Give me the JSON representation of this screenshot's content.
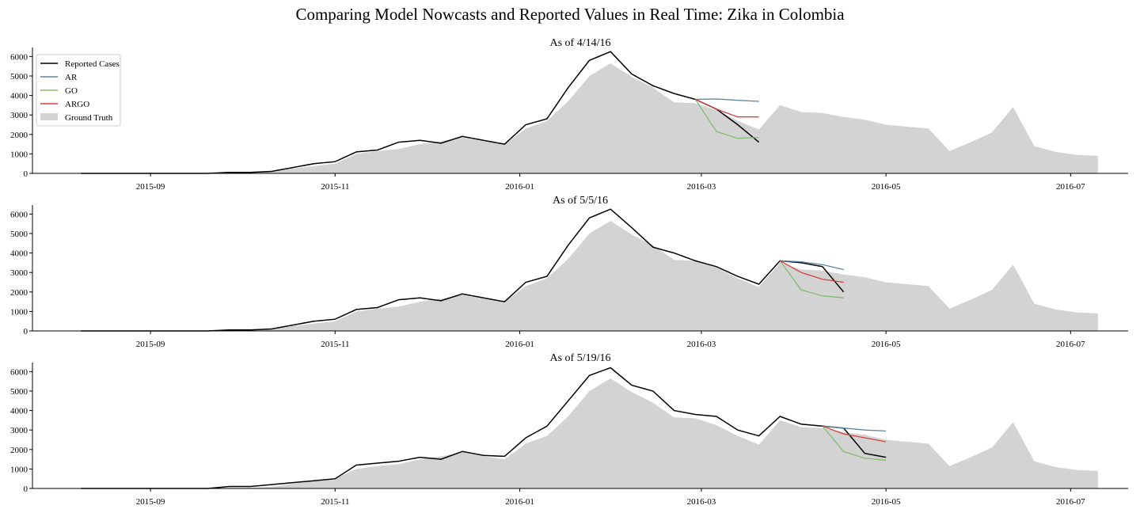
{
  "suptitle": "Comparing Model Nowcasts and Reported Values in Real Time: Zika in Colombia",
  "legend": {
    "placement": "top-left of first panel",
    "entries": [
      {
        "label": "Reported Cases",
        "key": "reported"
      },
      {
        "label": "AR",
        "key": "ar"
      },
      {
        "label": "GO",
        "key": "go"
      },
      {
        "label": "ARGO",
        "key": "argo"
      },
      {
        "label": "Ground Truth",
        "key": "truth"
      }
    ]
  },
  "colors": {
    "reported": "#000000",
    "ar": "#5b86a4",
    "go": "#83bd70",
    "argo": "#d9403f",
    "truth": "#d3d3d3"
  },
  "chart_data": {
    "type": "line",
    "shared_x_axis": {
      "type": "date",
      "ticks": [
        "2015-09-01",
        "2015-11-01",
        "2016-01-01",
        "2016-03-01",
        "2016-05-01",
        "2016-07-01"
      ],
      "tick_labels": [
        "2015-09",
        "2015-11",
        "2016-01",
        "2016-03",
        "2016-05",
        "2016-07"
      ],
      "xlim": [
        "2015-07-24",
        "2016-07-20"
      ]
    },
    "shared_y_axis": {
      "ticks": [
        0,
        1000,
        2000,
        3000,
        4000,
        5000,
        6000
      ],
      "ylim": [
        0,
        6300
      ]
    },
    "ground_truth": {
      "name": "Ground Truth",
      "type": "area",
      "x": [
        "2015-08-09",
        "2015-08-16",
        "2015-08-23",
        "2015-08-30",
        "2015-09-06",
        "2015-09-13",
        "2015-09-20",
        "2015-09-27",
        "2015-10-04",
        "2015-10-11",
        "2015-10-18",
        "2015-10-25",
        "2015-11-01",
        "2015-11-08",
        "2015-11-15",
        "2015-11-22",
        "2015-11-29",
        "2015-12-06",
        "2015-12-13",
        "2015-12-20",
        "2015-12-27",
        "2016-01-03",
        "2016-01-10",
        "2016-01-17",
        "2016-01-24",
        "2016-01-31",
        "2016-02-07",
        "2016-02-14",
        "2016-02-21",
        "2016-02-28",
        "2016-03-06",
        "2016-03-13",
        "2016-03-20",
        "2016-03-27",
        "2016-04-03",
        "2016-04-10",
        "2016-04-17",
        "2016-04-24",
        "2016-05-01",
        "2016-05-08",
        "2016-05-15",
        "2016-05-22",
        "2016-05-29",
        "2016-06-05",
        "2016-06-12",
        "2016-06-19",
        "2016-06-26",
        "2016-07-03",
        "2016-07-10"
      ],
      "y": [
        0,
        0,
        0,
        0,
        0,
        0,
        0,
        0,
        30,
        80,
        250,
        380,
        500,
        1000,
        1150,
        1250,
        1500,
        1650,
        1850,
        1650,
        1500,
        2300,
        2700,
        3700,
        5000,
        5650,
        4950,
        4400,
        3650,
        3600,
        3250,
        2700,
        2250,
        3500,
        3150,
        3100,
        2900,
        2750,
        2500,
        2400,
        2300,
        1150,
        1600,
        2100,
        3400,
        1400,
        1100,
        950,
        900
      ]
    },
    "panels": [
      {
        "title": "As of 4/14/16",
        "reported": {
          "name": "Reported Cases",
          "x": [
            "2015-08-09",
            "2015-08-16",
            "2015-08-23",
            "2015-08-30",
            "2015-09-06",
            "2015-09-13",
            "2015-09-20",
            "2015-09-27",
            "2015-10-04",
            "2015-10-11",
            "2015-10-18",
            "2015-10-25",
            "2015-11-01",
            "2015-11-08",
            "2015-11-15",
            "2015-11-22",
            "2015-11-29",
            "2015-12-06",
            "2015-12-13",
            "2015-12-20",
            "2015-12-27",
            "2016-01-03",
            "2016-01-10",
            "2016-01-17",
            "2016-01-24",
            "2016-01-31",
            "2016-02-07",
            "2016-02-14",
            "2016-02-21",
            "2016-02-28",
            "2016-03-06",
            "2016-03-13",
            "2016-03-20"
          ],
          "y": [
            0,
            0,
            0,
            0,
            0,
            0,
            0,
            50,
            50,
            100,
            300,
            500,
            600,
            1100,
            1200,
            1600,
            1700,
            1550,
            1900,
            1700,
            1500,
            2500,
            2800,
            4400,
            5800,
            6250,
            5100,
            4500,
            4100,
            3800,
            3300,
            2500,
            1600
          ]
        },
        "nowcasts": [
          {
            "name": "AR",
            "x": [
              "2016-02-28",
              "2016-03-06",
              "2016-03-13",
              "2016-03-20"
            ],
            "y": [
              3800,
              3820,
              3750,
              3700
            ]
          },
          {
            "name": "GO",
            "x": [
              "2016-02-28",
              "2016-03-06",
              "2016-03-13",
              "2016-03-20"
            ],
            "y": [
              3800,
              2150,
              1800,
              1850
            ]
          },
          {
            "name": "ARGO",
            "x": [
              "2016-02-28",
              "2016-03-06",
              "2016-03-13",
              "2016-03-20"
            ],
            "y": [
              3800,
              3300,
              2900,
              2900
            ]
          }
        ]
      },
      {
        "title": "As of 5/5/16",
        "reported": {
          "name": "Reported Cases",
          "x": [
            "2015-08-09",
            "2015-08-16",
            "2015-08-23",
            "2015-08-30",
            "2015-09-06",
            "2015-09-13",
            "2015-09-20",
            "2015-09-27",
            "2015-10-04",
            "2015-10-11",
            "2015-10-18",
            "2015-10-25",
            "2015-11-01",
            "2015-11-08",
            "2015-11-15",
            "2015-11-22",
            "2015-11-29",
            "2015-12-06",
            "2015-12-13",
            "2015-12-20",
            "2015-12-27",
            "2016-01-03",
            "2016-01-10",
            "2016-01-17",
            "2016-01-24",
            "2016-01-31",
            "2016-02-07",
            "2016-02-14",
            "2016-02-21",
            "2016-02-28",
            "2016-03-06",
            "2016-03-13",
            "2016-03-20",
            "2016-03-27",
            "2016-04-03",
            "2016-04-10",
            "2016-04-17"
          ],
          "y": [
            0,
            0,
            0,
            0,
            0,
            0,
            0,
            50,
            50,
            100,
            300,
            500,
            600,
            1100,
            1200,
            1600,
            1700,
            1550,
            1900,
            1700,
            1500,
            2500,
            2800,
            4400,
            5800,
            6250,
            5300,
            4300,
            4000,
            3600,
            3300,
            2800,
            2400,
            3600,
            3500,
            3300,
            2000
          ]
        },
        "nowcasts": [
          {
            "name": "AR",
            "x": [
              "2016-03-27",
              "2016-04-03",
              "2016-04-10",
              "2016-04-17"
            ],
            "y": [
              3600,
              3550,
              3400,
              3150
            ]
          },
          {
            "name": "GO",
            "x": [
              "2016-03-27",
              "2016-04-03",
              "2016-04-10",
              "2016-04-17"
            ],
            "y": [
              3600,
              2100,
              1800,
              1700
            ]
          },
          {
            "name": "ARGO",
            "x": [
              "2016-03-27",
              "2016-04-03",
              "2016-04-10",
              "2016-04-17"
            ],
            "y": [
              3600,
              3000,
              2650,
              2500
            ]
          }
        ]
      },
      {
        "title": "As of 5/19/16",
        "reported": {
          "name": "Reported Cases",
          "x": [
            "2015-08-09",
            "2015-08-16",
            "2015-08-23",
            "2015-08-30",
            "2015-09-06",
            "2015-09-13",
            "2015-09-20",
            "2015-09-27",
            "2015-10-04",
            "2015-10-11",
            "2015-10-18",
            "2015-10-25",
            "2015-11-01",
            "2015-11-08",
            "2015-11-15",
            "2015-11-22",
            "2015-11-29",
            "2015-12-06",
            "2015-12-13",
            "2015-12-20",
            "2015-12-27",
            "2016-01-03",
            "2016-01-10",
            "2016-01-17",
            "2016-01-24",
            "2016-01-31",
            "2016-02-07",
            "2016-02-14",
            "2016-02-21",
            "2016-02-28",
            "2016-03-06",
            "2016-03-13",
            "2016-03-20",
            "2016-03-27",
            "2016-04-03",
            "2016-04-10",
            "2016-04-17",
            "2016-04-24",
            "2016-05-01"
          ],
          "y": [
            0,
            0,
            0,
            0,
            0,
            0,
            0,
            100,
            100,
            200,
            300,
            400,
            500,
            1200,
            1300,
            1400,
            1600,
            1500,
            1900,
            1700,
            1650,
            2600,
            3200,
            4500,
            5800,
            6200,
            5300,
            5000,
            4000,
            3800,
            3700,
            3000,
            2700,
            3700,
            3300,
            3200,
            3100,
            1800,
            1600
          ]
        },
        "nowcasts": [
          {
            "name": "AR",
            "x": [
              "2016-04-10",
              "2016-04-17",
              "2016-04-24",
              "2016-05-01"
            ],
            "y": [
              3200,
              3100,
              3000,
              2950
            ]
          },
          {
            "name": "GO",
            "x": [
              "2016-04-10",
              "2016-04-17",
              "2016-04-24",
              "2016-05-01"
            ],
            "y": [
              3200,
              1900,
              1550,
              1450
            ]
          },
          {
            "name": "ARGO",
            "x": [
              "2016-04-10",
              "2016-04-17",
              "2016-04-24",
              "2016-05-01"
            ],
            "y": [
              3200,
              2800,
              2600,
              2400
            ]
          }
        ]
      }
    ]
  }
}
